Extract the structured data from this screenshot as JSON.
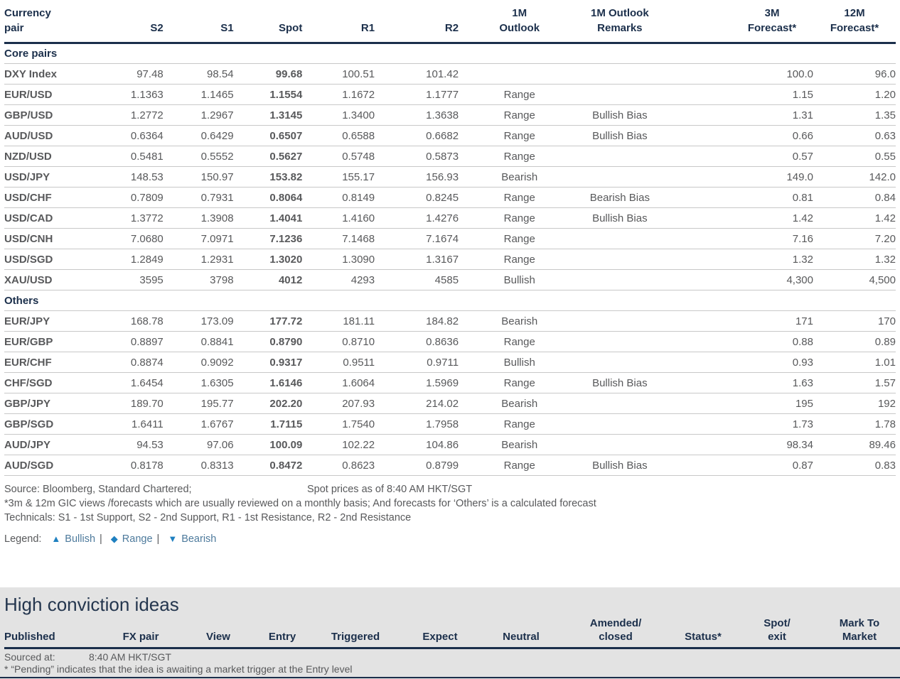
{
  "colors": {
    "navy": "#1b2f4b",
    "range": "#F2A90A",
    "bearish": "#E9202A",
    "bullish": "#00857E",
    "legend_icon_blue": "#1F80C0",
    "band_gray": "#e3e3e3"
  },
  "fx_table": {
    "headers": [
      "Currency\npair",
      "S2",
      "S1",
      "Spot",
      "R1",
      "R2",
      "1M\nOutlook",
      "1M Outlook\nRemarks",
      "",
      "3M\nForecast*",
      "12M\nForecast*"
    ],
    "sections": [
      {
        "label": "Core pairs",
        "rows": [
          {
            "pair": "DXY Index",
            "s2": "97.48",
            "s1": "98.54",
            "spot": "99.68",
            "r1": "100.51",
            "r2": "101.42",
            "outlook": "",
            "remarks": "",
            "f3m": "100.0",
            "f12m": "96.0"
          },
          {
            "pair": "EUR/USD",
            "s2": "1.1363",
            "s1": "1.1465",
            "spot": "1.1554",
            "r1": "1.1672",
            "r2": "1.1777",
            "outlook": "Range",
            "remarks": "",
            "f3m": "1.15",
            "f12m": "1.20"
          },
          {
            "pair": "GBP/USD",
            "s2": "1.2772",
            "s1": "1.2967",
            "spot": "1.3145",
            "r1": "1.3400",
            "r2": "1.3638",
            "outlook": "Range",
            "remarks": "Bullish Bias",
            "f3m": "1.31",
            "f12m": "1.35"
          },
          {
            "pair": "AUD/USD",
            "s2": "0.6364",
            "s1": "0.6429",
            "spot": "0.6507",
            "r1": "0.6588",
            "r2": "0.6682",
            "outlook": "Range",
            "remarks": "Bullish Bias",
            "f3m": "0.66",
            "f12m": "0.63"
          },
          {
            "pair": "NZD/USD",
            "s2": "0.5481",
            "s1": "0.5552",
            "spot": "0.5627",
            "r1": "0.5748",
            "r2": "0.5873",
            "outlook": "Range",
            "remarks": "",
            "f3m": "0.57",
            "f12m": "0.55"
          },
          {
            "pair": "USD/JPY",
            "s2": "148.53",
            "s1": "150.97",
            "spot": "153.82",
            "r1": "155.17",
            "r2": "156.93",
            "outlook": "Bearish",
            "remarks": "",
            "f3m": "149.0",
            "f12m": "142.0"
          },
          {
            "pair": "USD/CHF",
            "s2": "0.7809",
            "s1": "0.7931",
            "spot": "0.8064",
            "r1": "0.8149",
            "r2": "0.8245",
            "outlook": "Range",
            "remarks": "Bearish Bias",
            "f3m": "0.81",
            "f12m": "0.84"
          },
          {
            "pair": "USD/CAD",
            "s2": "1.3772",
            "s1": "1.3908",
            "spot": "1.4041",
            "r1": "1.4160",
            "r2": "1.4276",
            "outlook": "Range",
            "remarks": "Bullish Bias",
            "f3m": "1.42",
            "f12m": "1.42"
          },
          {
            "pair": "USD/CNH",
            "s2": "7.0680",
            "s1": "7.0971",
            "spot": "7.1236",
            "r1": "7.1468",
            "r2": "7.1674",
            "outlook": "Range",
            "remarks": "",
            "f3m": "7.16",
            "f12m": "7.20"
          },
          {
            "pair": "USD/SGD",
            "s2": "1.2849",
            "s1": "1.2931",
            "spot": "1.3020",
            "r1": "1.3090",
            "r2": "1.3167",
            "outlook": "Range",
            "remarks": "",
            "f3m": "1.32",
            "f12m": "1.32"
          },
          {
            "pair": "XAU/USD",
            "s2": "3595",
            "s1": "3798",
            "spot": "4012",
            "r1": "4293",
            "r2": "4585",
            "outlook": "Bullish",
            "remarks": "",
            "f3m": "4,300",
            "f12m": "4,500"
          }
        ]
      },
      {
        "label": "Others",
        "rows": [
          {
            "pair": "EUR/JPY",
            "s2": "168.78",
            "s1": "173.09",
            "spot": "177.72",
            "r1": "181.11",
            "r2": "184.82",
            "outlook": "Bearish",
            "remarks": "",
            "f3m": "171",
            "f12m": "170"
          },
          {
            "pair": "EUR/GBP",
            "s2": "0.8897",
            "s1": "0.8841",
            "spot": "0.8790",
            "r1": "0.8710",
            "r2": "0.8636",
            "outlook": "Range",
            "remarks": "",
            "f3m": "0.88",
            "f12m": "0.89"
          },
          {
            "pair": "EUR/CHF",
            "s2": "0.8874",
            "s1": "0.9092",
            "spot": "0.9317",
            "r1": "0.9511",
            "r2": "0.9711",
            "outlook": "Bullish",
            "remarks": "",
            "f3m": "0.93",
            "f12m": "1.01"
          },
          {
            "pair": "CHF/SGD",
            "s2": "1.6454",
            "s1": "1.6305",
            "spot": "1.6146",
            "r1": "1.6064",
            "r2": "1.5969",
            "outlook": "Range",
            "remarks": "Bullish Bias",
            "f3m": "1.63",
            "f12m": "1.57"
          },
          {
            "pair": "GBP/JPY",
            "s2": "189.70",
            "s1": "195.77",
            "spot": "202.20",
            "r1": "207.93",
            "r2": "214.02",
            "outlook": "Bearish",
            "remarks": "",
            "f3m": "195",
            "f12m": "192"
          },
          {
            "pair": "GBP/SGD",
            "s2": "1.6411",
            "s1": "1.6767",
            "spot": "1.7115",
            "r1": "1.7540",
            "r2": "1.7958",
            "outlook": "Range",
            "remarks": "",
            "f3m": "1.73",
            "f12m": "1.78"
          },
          {
            "pair": "AUD/JPY",
            "s2": "94.53",
            "s1": "97.06",
            "spot": "100.09",
            "r1": "102.22",
            "r2": "104.86",
            "outlook": "Bearish",
            "remarks": "",
            "f3m": "98.34",
            "f12m": "89.46"
          },
          {
            "pair": "AUD/SGD",
            "s2": "0.8178",
            "s1": "0.8313",
            "spot": "0.8472",
            "r1": "0.8623",
            "r2": "0.8799",
            "outlook": "Range",
            "remarks": "Bullish Bias",
            "f3m": "0.87",
            "f12m": "0.83"
          }
        ]
      }
    ]
  },
  "footnotes": {
    "source": "Source: Bloomberg, Standard Chartered;",
    "spot_asof": "Spot prices as of  8:40 AM HKT/SGT",
    "forecast_note": "*3m & 12m GIC views /forecasts which are usually reviewed on a monthly basis; And forecasts for ‘Others’ is a calculated forecast",
    "technicals_note": "Technicals: S1 - 1st Support, S2 - 2nd Support, R1 - 1st Resistance, R2 - 2nd Resistance",
    "legend": {
      "label": "Legend:",
      "separator": "|",
      "items": [
        {
          "icon": "▲",
          "icon_name": "triangle-up-icon",
          "label": "Bullish"
        },
        {
          "icon": "◆",
          "icon_name": "diamond-icon",
          "label": "Range"
        },
        {
          "icon": "▼",
          "icon_name": "triangle-down-icon",
          "label": "Bearish"
        }
      ]
    }
  },
  "high_conviction": {
    "title": "High conviction ideas",
    "headers": [
      "Published",
      "FX pair",
      "View",
      "Entry",
      "Triggered",
      "Expect",
      "Neutral",
      "Amended/\nclosed",
      "Status*",
      "Spot/\nexit",
      "Mark To\nMarket"
    ],
    "sourced_label": "Sourced at:",
    "sourced_value": "8:40 AM HKT/SGT",
    "pending_note": "* “Pending” indicates that the idea is awaiting a market trigger at the Entry level"
  }
}
